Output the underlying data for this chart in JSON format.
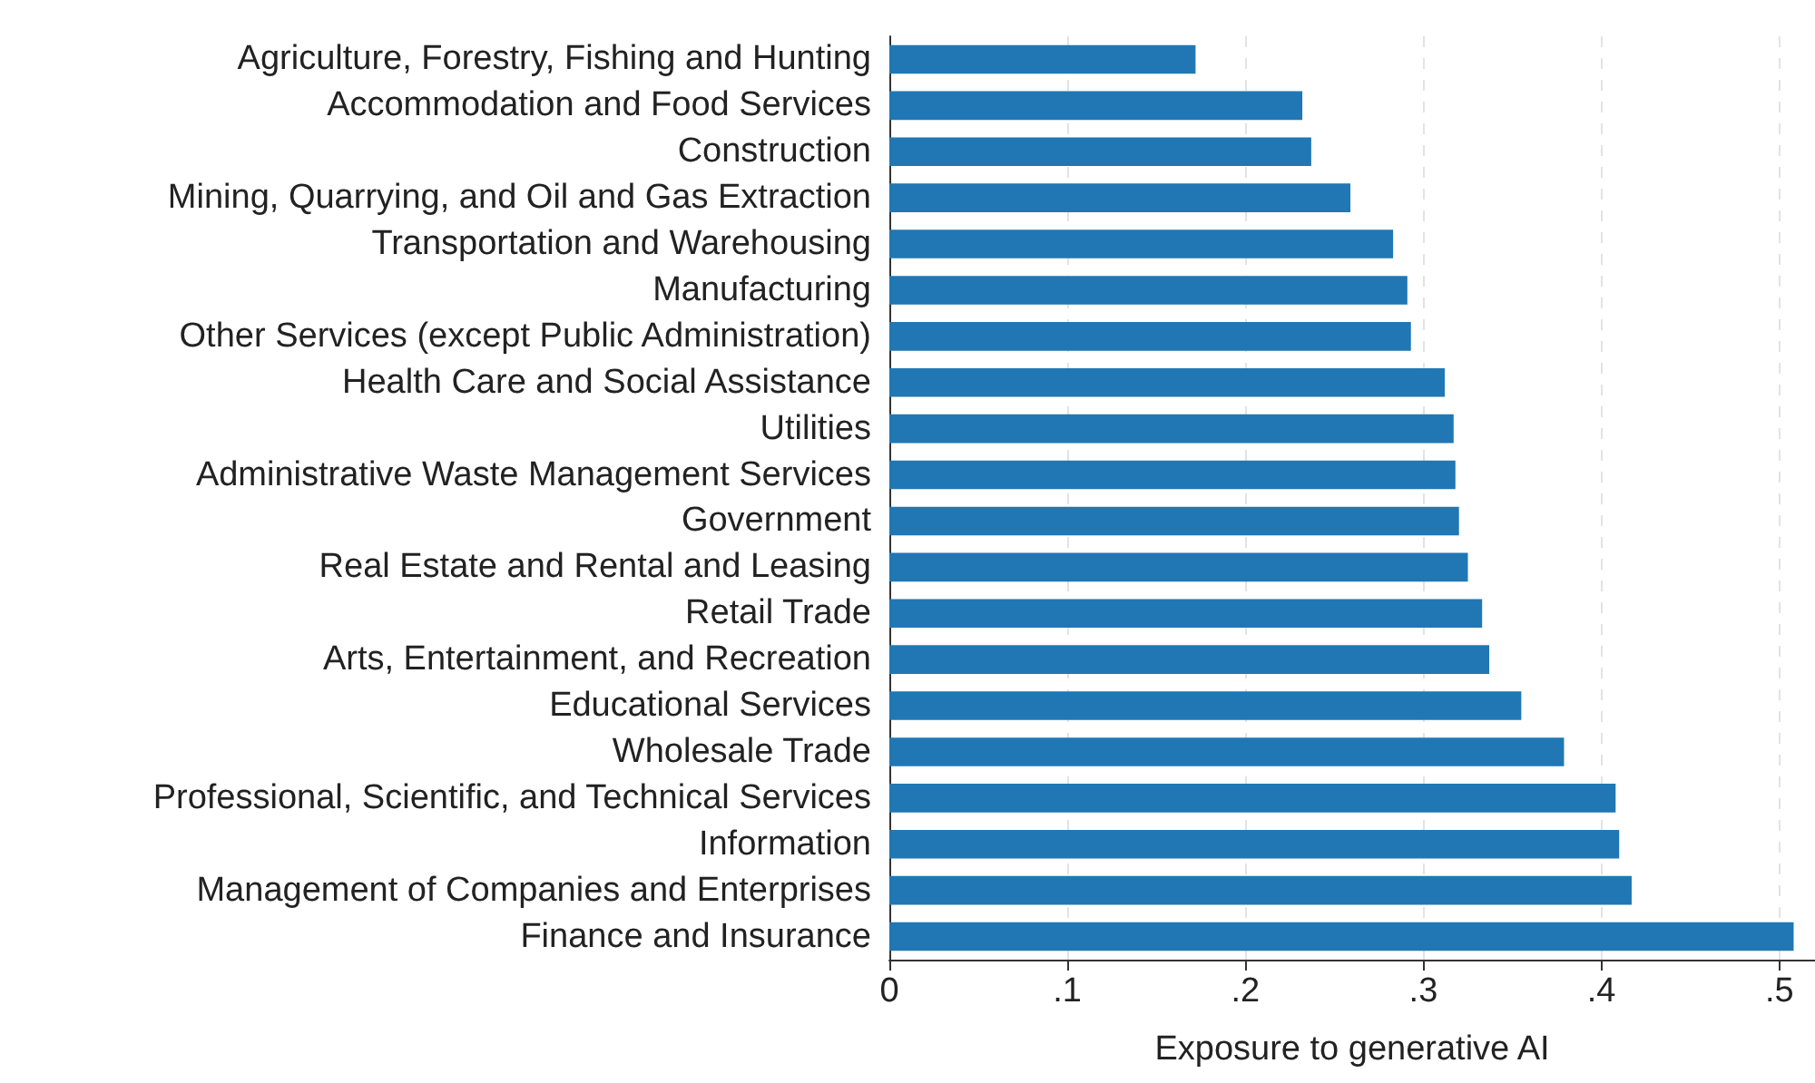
{
  "chart_data": {
    "type": "bar",
    "orientation": "horizontal",
    "xlabel": "Exposure to generative AI",
    "categories": [
      "Agriculture, Forestry, Fishing and Hunting",
      "Accommodation and Food Services",
      "Construction",
      "Mining, Quarrying, and Oil and Gas Extraction",
      "Transportation and Warehousing",
      "Manufacturing",
      "Other Services (except Public Administration)",
      "Health Care and Social Assistance",
      "Utilities",
      "Administrative Waste Management Services",
      "Government",
      "Real Estate and Rental and Leasing",
      "Retail Trade",
      "Arts, Entertainment, and Recreation",
      "Educational Services",
      "Wholesale Trade",
      "Professional, Scientific, and Technical Services",
      "Information",
      "Management of Companies and Enterprises",
      "Finance and Insurance"
    ],
    "values": [
      0.172,
      0.232,
      0.237,
      0.259,
      0.283,
      0.291,
      0.293,
      0.312,
      0.317,
      0.318,
      0.32,
      0.325,
      0.333,
      0.337,
      0.355,
      0.379,
      0.408,
      0.41,
      0.417,
      0.508
    ],
    "color": "#2077b4",
    "xlim": [
      0,
      0.52
    ],
    "xticks": [
      0,
      {
        "value": 0.1,
        "label": ".1"
      },
      {
        "value": 0.2,
        "label": ".2"
      },
      {
        "value": 0.3,
        "label": ".3"
      },
      {
        "value": 0.4,
        "label": ".4"
      },
      {
        "value": 0.5,
        "label": ".5"
      }
    ],
    "grid": "x"
  }
}
